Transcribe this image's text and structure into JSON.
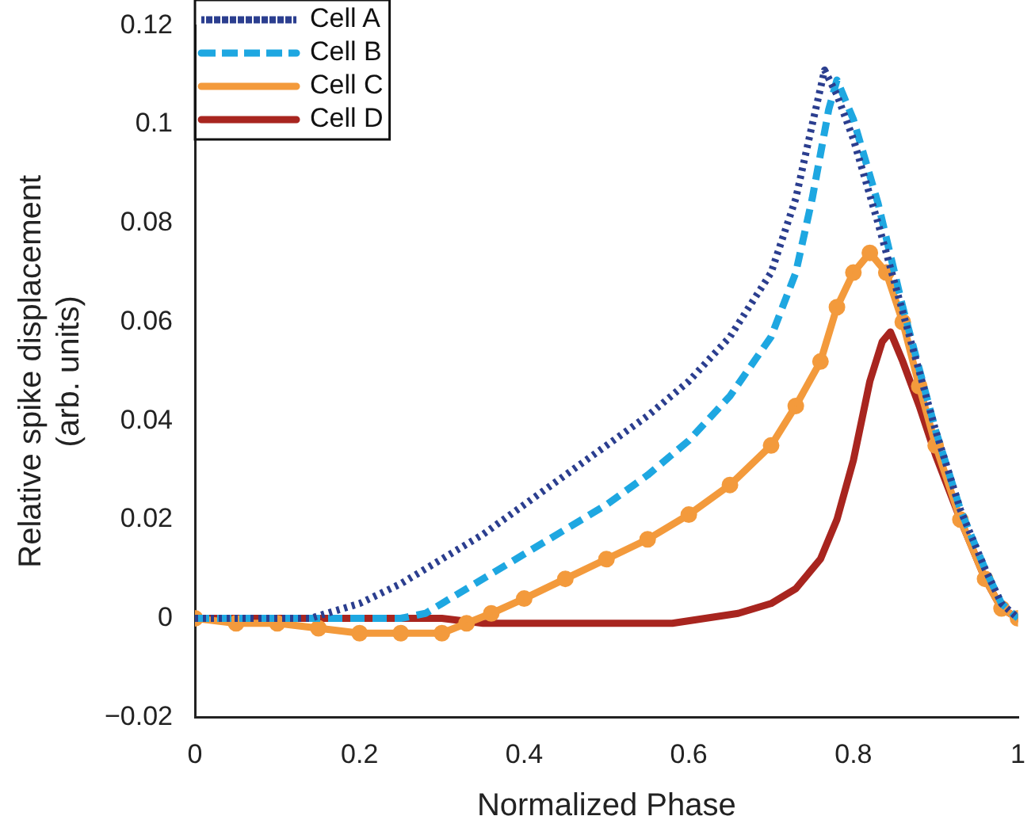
{
  "chart_data": {
    "type": "line",
    "xlabel": "Normalized Phase",
    "ylabel": "Relative spike displacement\n(arb. units)",
    "xlim": [
      0,
      1
    ],
    "xticks": [
      0,
      0.2,
      0.4,
      0.6,
      0.8,
      1
    ],
    "ylim": [
      -0.02,
      0.12
    ],
    "yticks": [
      -0.02,
      0,
      0.02,
      0.04,
      0.06,
      0.08,
      0.1,
      0.12
    ],
    "grid": false,
    "legend": "top left",
    "series": [
      {
        "name": "Cell A",
        "color": "#2b3e8f",
        "line_style": "dotted",
        "marker": "none",
        "x": [
          0,
          0.1,
          0.14,
          0.2,
          0.25,
          0.3,
          0.35,
          0.4,
          0.45,
          0.5,
          0.55,
          0.6,
          0.65,
          0.7,
          0.73,
          0.75,
          0.765,
          0.78,
          0.8,
          0.83,
          0.86,
          0.9,
          0.93,
          0.96,
          0.98,
          1
        ],
        "values": [
          0,
          0,
          0,
          0.003,
          0.007,
          0.012,
          0.017,
          0.023,
          0.029,
          0.035,
          0.041,
          0.048,
          0.057,
          0.07,
          0.085,
          0.1,
          0.111,
          0.106,
          0.097,
          0.08,
          0.062,
          0.038,
          0.022,
          0.01,
          0.003,
          0
        ]
      },
      {
        "name": "Cell B",
        "color": "#1ea7e1",
        "line_style": "dashed",
        "marker": "none",
        "x": [
          0,
          0.25,
          0.28,
          0.3,
          0.35,
          0.4,
          0.45,
          0.5,
          0.55,
          0.6,
          0.65,
          0.7,
          0.73,
          0.75,
          0.77,
          0.78,
          0.8,
          0.83,
          0.86,
          0.9,
          0.93,
          0.96,
          0.98,
          1
        ],
        "values": [
          0,
          0,
          0.001,
          0.003,
          0.008,
          0.013,
          0.018,
          0.023,
          0.029,
          0.036,
          0.045,
          0.057,
          0.07,
          0.085,
          0.103,
          0.109,
          0.101,
          0.084,
          0.063,
          0.038,
          0.022,
          0.01,
          0.003,
          0
        ]
      },
      {
        "name": "Cell C",
        "color": "#f39a3c",
        "line_style": "solid",
        "marker": "circle",
        "x": [
          0,
          0.05,
          0.1,
          0.15,
          0.2,
          0.25,
          0.3,
          0.33,
          0.36,
          0.4,
          0.45,
          0.5,
          0.55,
          0.6,
          0.65,
          0.7,
          0.73,
          0.76,
          0.78,
          0.8,
          0.82,
          0.84,
          0.86,
          0.88,
          0.9,
          0.93,
          0.96,
          0.98,
          1
        ],
        "values": [
          0,
          -0.001,
          -0.001,
          -0.002,
          -0.003,
          -0.003,
          -0.003,
          -0.001,
          0.001,
          0.004,
          0.008,
          0.012,
          0.016,
          0.021,
          0.027,
          0.035,
          0.043,
          0.052,
          0.063,
          0.07,
          0.074,
          0.07,
          0.06,
          0.047,
          0.035,
          0.02,
          0.008,
          0.002,
          0
        ]
      },
      {
        "name": "Cell D",
        "color": "#a8251f",
        "line_style": "solid",
        "marker": "none",
        "x": [
          0,
          0.3,
          0.35,
          0.4,
          0.5,
          0.58,
          0.62,
          0.66,
          0.7,
          0.73,
          0.76,
          0.78,
          0.8,
          0.82,
          0.835,
          0.845,
          0.86,
          0.88,
          0.9,
          0.93,
          0.96,
          0.98,
          1
        ],
        "values": [
          0,
          0,
          -0.001,
          -0.001,
          -0.001,
          -0.001,
          0,
          0.001,
          0.003,
          0.006,
          0.012,
          0.02,
          0.032,
          0.048,
          0.056,
          0.058,
          0.052,
          0.043,
          0.033,
          0.02,
          0.008,
          0.002,
          0
        ]
      }
    ]
  }
}
